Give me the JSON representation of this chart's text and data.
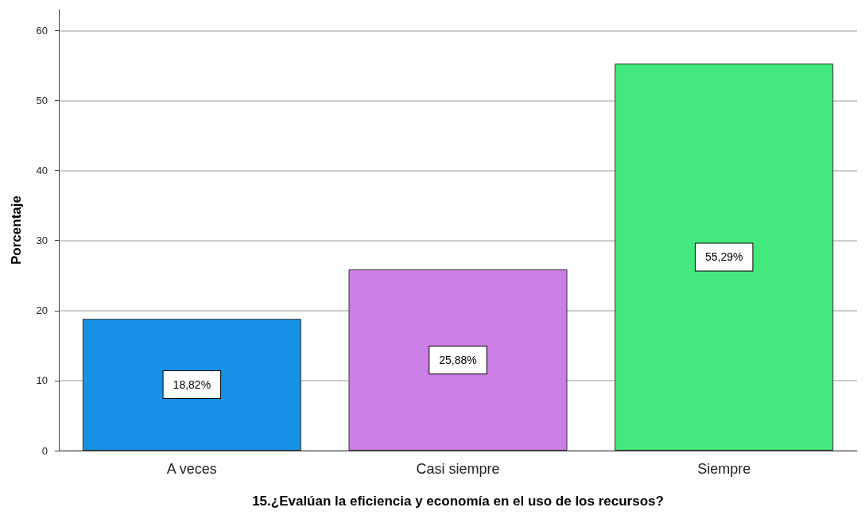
{
  "chart_data": {
    "type": "bar",
    "xlabel": "15.¿Evalúan la eficiencia y economía en el uso de los recursos?",
    "ylabel": "Porcentaje",
    "categories": [
      "A veces",
      "Casi siempre",
      "Siempre"
    ],
    "values": [
      18.82,
      25.88,
      55.29
    ],
    "value_labels": [
      "18,82%",
      "25,88%",
      "55,29%"
    ],
    "colors": [
      "#1591e6",
      "#cb7fe5",
      "#42e97c"
    ],
    "ylim": [
      0,
      63
    ],
    "yticks": [
      0,
      10,
      20,
      30,
      40,
      50,
      60
    ],
    "grid": "y"
  }
}
